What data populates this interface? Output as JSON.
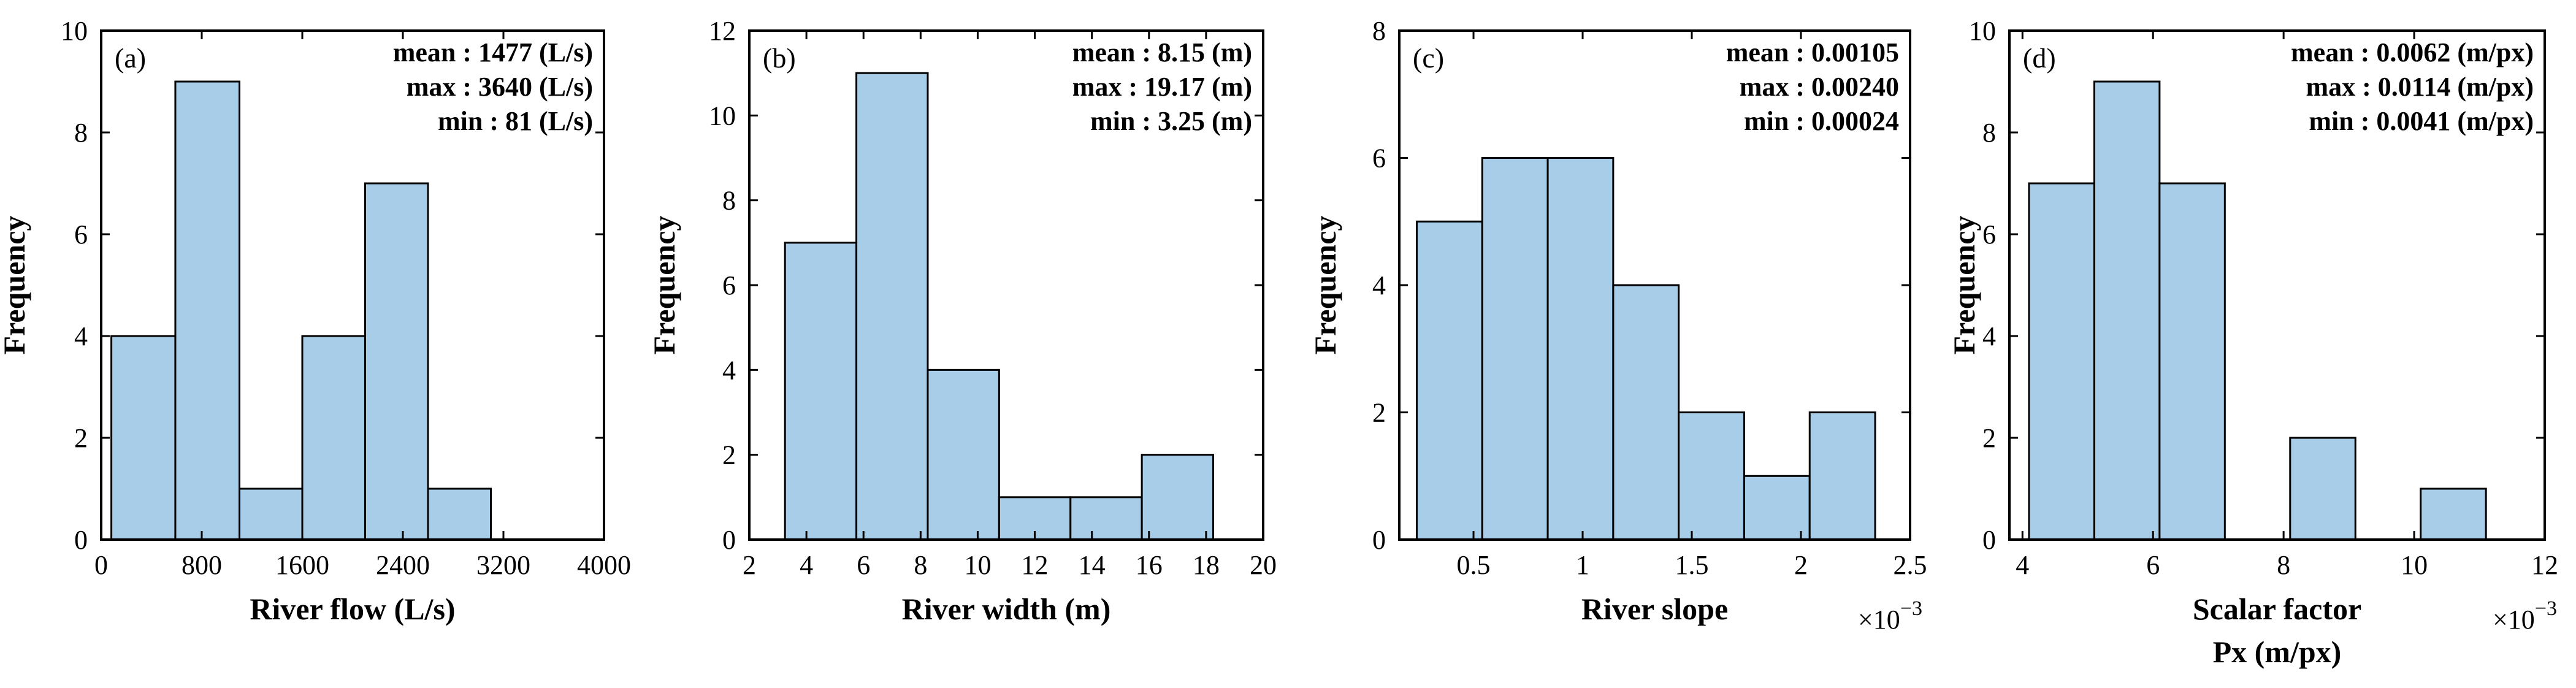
{
  "chart_data": [
    {
      "type": "bar",
      "panel": "(a)",
      "xlabel": "River flow (L/s)",
      "ylabel": "Frequency",
      "xlim": [
        0,
        4000
      ],
      "ylim": [
        0,
        10
      ],
      "xticks": [
        0,
        800,
        1600,
        2400,
        3200,
        4000
      ],
      "xtick_labels": [
        "0",
        "800",
        "1600",
        "2400",
        "3200",
        "4000"
      ],
      "yticks": [
        0,
        2,
        4,
        6,
        8,
        10
      ],
      "ytick_labels": [
        "0",
        "2",
        "4",
        "6",
        "8",
        "10"
      ],
      "bins": [
        [
          81,
          590
        ],
        [
          590,
          1100
        ],
        [
          1100,
          1600
        ],
        [
          1600,
          2100
        ],
        [
          2100,
          2600
        ],
        [
          2600,
          3100
        ]
      ],
      "values": [
        4,
        9,
        1,
        4,
        7,
        1
      ],
      "exponent": "",
      "stats": [
        {
          "label": "mean",
          "sep": ":",
          "value": "1477",
          "unit": "(L/s)"
        },
        {
          "label": "max",
          "sep": ":",
          "value": "3640",
          "unit": "(L/s)"
        },
        {
          "label": "min",
          "sep": ":",
          "value": "81",
          "unit": "(L/s)"
        }
      ]
    },
    {
      "type": "bar",
      "panel": "(b)",
      "xlabel": "River width (m)",
      "ylabel": "Frequency",
      "xlim": [
        2,
        20
      ],
      "ylim": [
        0,
        12
      ],
      "xticks": [
        2,
        4,
        6,
        8,
        10,
        12,
        14,
        16,
        18,
        20
      ],
      "xtick_labels": [
        "2",
        "4",
        "6",
        "8",
        "10",
        "12",
        "14",
        "16",
        "18",
        "20"
      ],
      "yticks": [
        0,
        2,
        4,
        6,
        8,
        10,
        12
      ],
      "ytick_labels": [
        "0",
        "2",
        "4",
        "6",
        "8",
        "10",
        "12"
      ],
      "bins": [
        [
          3.25,
          5.75
        ],
        [
          5.75,
          8.25
        ],
        [
          8.25,
          10.75
        ],
        [
          10.75,
          13.25
        ],
        [
          13.25,
          15.75
        ],
        [
          15.75,
          18.25
        ]
      ],
      "values": [
        7,
        11,
        4,
        1,
        1,
        2
      ],
      "exponent": "",
      "stats": [
        {
          "label": "mean",
          "sep": ":",
          "value": "8.15",
          "unit": "(m)"
        },
        {
          "label": "max",
          "sep": ":",
          "value": "19.17",
          "unit": "(m)"
        },
        {
          "label": "min",
          "sep": ":",
          "value": "3.25",
          "unit": "(m)"
        }
      ]
    },
    {
      "type": "bar",
      "panel": "(c)",
      "xlabel": "River slope",
      "ylabel": "Frequency",
      "xlim": [
        0.00016,
        0.0025
      ],
      "ylim": [
        0,
        8
      ],
      "xticks": [
        0.0005,
        0.001,
        0.0015,
        0.002,
        0.0025
      ],
      "xtick_labels": [
        "0.5",
        "1",
        "1.5",
        "2",
        "2.5"
      ],
      "yticks": [
        0,
        2,
        4,
        6,
        8
      ],
      "ytick_labels": [
        "0",
        "2",
        "4",
        "6",
        "8"
      ],
      "bins": [
        [
          0.00024,
          0.00054
        ],
        [
          0.00054,
          0.00084
        ],
        [
          0.00084,
          0.00114
        ],
        [
          0.00114,
          0.00144
        ],
        [
          0.00144,
          0.00174
        ],
        [
          0.00174,
          0.00204
        ],
        [
          0.00204,
          0.00234
        ]
      ],
      "values": [
        5,
        6,
        6,
        4,
        2,
        1,
        2
      ],
      "exponent": "×10",
      "exponent_power": "−3",
      "stats": [
        {
          "label": "mean",
          "sep": ":",
          "value": "0.00105",
          "unit": ""
        },
        {
          "label": "max",
          "sep": ":",
          "value": "0.00240",
          "unit": ""
        },
        {
          "label": "min",
          "sep": ":",
          "value": "0.00024",
          "unit": ""
        }
      ]
    },
    {
      "type": "bar",
      "panel": "(d)",
      "xlabel": "Scalar factor",
      "xlabel2": "Px (m/px)",
      "ylabel": "Frequency",
      "xlim": [
        0.0038,
        0.012
      ],
      "ylim": [
        0,
        10
      ],
      "xticks": [
        0.004,
        0.006,
        0.008,
        0.01,
        0.012
      ],
      "xtick_labels": [
        "4",
        "6",
        "8",
        "10",
        "12"
      ],
      "yticks": [
        0,
        2,
        4,
        6,
        8,
        10
      ],
      "ytick_labels": [
        "0",
        "2",
        "4",
        "6",
        "8",
        "10"
      ],
      "bins": [
        [
          0.0041,
          0.0051
        ],
        [
          0.0051,
          0.0061
        ],
        [
          0.0061,
          0.0071
        ],
        [
          0.0071,
          0.0081
        ],
        [
          0.0081,
          0.0091
        ],
        [
          0.0091,
          0.0101
        ],
        [
          0.0101,
          0.0111
        ]
      ],
      "values": [
        7,
        9,
        7,
        0,
        2,
        0,
        1
      ],
      "exponent": "×10",
      "exponent_power": "−3",
      "stats": [
        {
          "label": "mean",
          "sep": ":",
          "value": "0.0062",
          "unit": "(m/px)"
        },
        {
          "label": "max",
          "sep": ":",
          "value": "0.0114",
          "unit": "(m/px)"
        },
        {
          "label": "min",
          "sep": ":",
          "value": "0.0041",
          "unit": "(m/px)"
        }
      ]
    }
  ]
}
